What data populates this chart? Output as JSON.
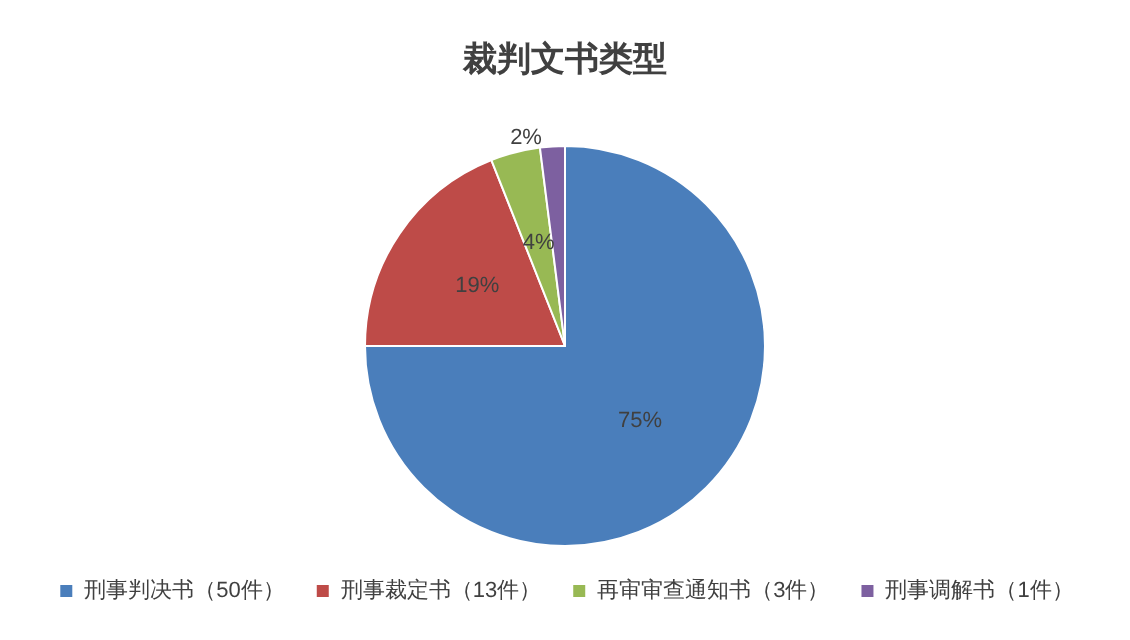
{
  "chart_data": {
    "type": "pie",
    "title": "裁判文书类型",
    "categories": [
      "刑事判决书（50件）",
      "刑事裁定书（13件）",
      "再审审查通知书（3件）",
      "刑事调解书（1件）"
    ],
    "values": [
      75,
      19,
      4,
      2
    ],
    "colors": [
      "#4a7ebb",
      "#be4b48",
      "#98b954",
      "#7d60a0"
    ],
    "value_labels": [
      "75%",
      "19%",
      "4%",
      "2%"
    ],
    "legend": "bottom"
  }
}
